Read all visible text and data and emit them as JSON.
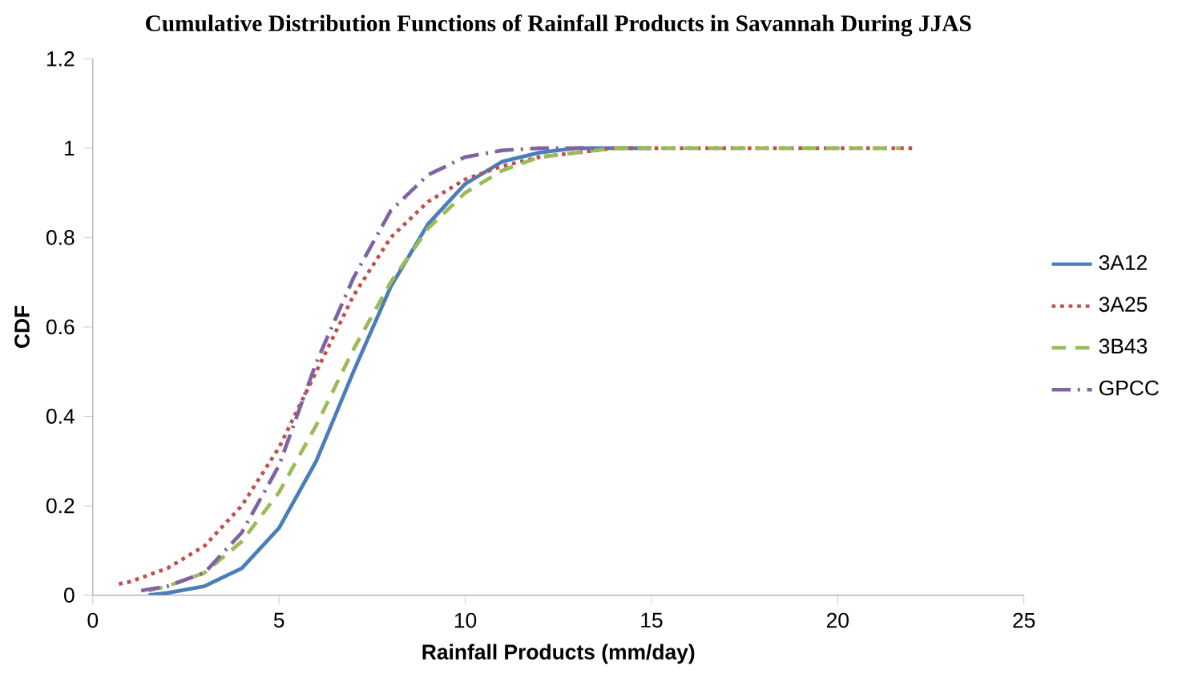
{
  "chart_data": {
    "type": "line",
    "title": "Cumulative Distribution Functions of Rainfall Products in Savannah During JJAS",
    "xlabel": "Rainfall Products (mm/day)",
    "ylabel": "CDF",
    "xlim": [
      0,
      25
    ],
    "ylim": [
      0,
      1.2
    ],
    "xticks": [
      0,
      5,
      10,
      15,
      20,
      25
    ],
    "yticks": [
      0,
      0.2,
      0.4,
      0.6,
      0.8,
      1,
      1.2
    ],
    "legend": "right",
    "marker": "none",
    "series": [
      {
        "name": "3A12",
        "color": "#4a7ebb",
        "line_style": "solid",
        "x": [
          1.5,
          2,
          3,
          4,
          5,
          6,
          7,
          8,
          9,
          10,
          11,
          12,
          13,
          15
        ],
        "values": [
          0,
          0.005,
          0.02,
          0.06,
          0.15,
          0.3,
          0.5,
          0.69,
          0.83,
          0.92,
          0.97,
          0.99,
          1,
          1
        ]
      },
      {
        "name": "3A25",
        "color": "#c0504d",
        "line_style": "dotted",
        "x": [
          0.7,
          1,
          2,
          3,
          4,
          5,
          6,
          7,
          8,
          9,
          10,
          11,
          12,
          13,
          14,
          22
        ],
        "values": [
          0.025,
          0.03,
          0.06,
          0.11,
          0.2,
          0.33,
          0.5,
          0.67,
          0.8,
          0.88,
          0.93,
          0.96,
          0.98,
          0.99,
          1,
          1
        ]
      },
      {
        "name": "3B43",
        "color": "#9bbb59",
        "line_style": "dashed",
        "x": [
          1.5,
          2,
          3,
          4,
          5,
          6,
          7,
          8,
          9,
          10,
          11,
          12,
          13,
          14,
          21.7
        ],
        "values": [
          0.01,
          0.02,
          0.05,
          0.12,
          0.23,
          0.38,
          0.55,
          0.7,
          0.82,
          0.9,
          0.95,
          0.98,
          0.99,
          1,
          1
        ]
      },
      {
        "name": "GPCC",
        "color": "#8064a2",
        "line_style": "dashdot",
        "x": [
          1.3,
          2,
          3,
          4,
          5,
          6,
          7,
          8,
          9,
          10,
          11,
          12,
          13.5
        ],
        "values": [
          0.01,
          0.02,
          0.05,
          0.14,
          0.29,
          0.52,
          0.71,
          0.86,
          0.94,
          0.98,
          0.995,
          1,
          1
        ]
      }
    ]
  }
}
